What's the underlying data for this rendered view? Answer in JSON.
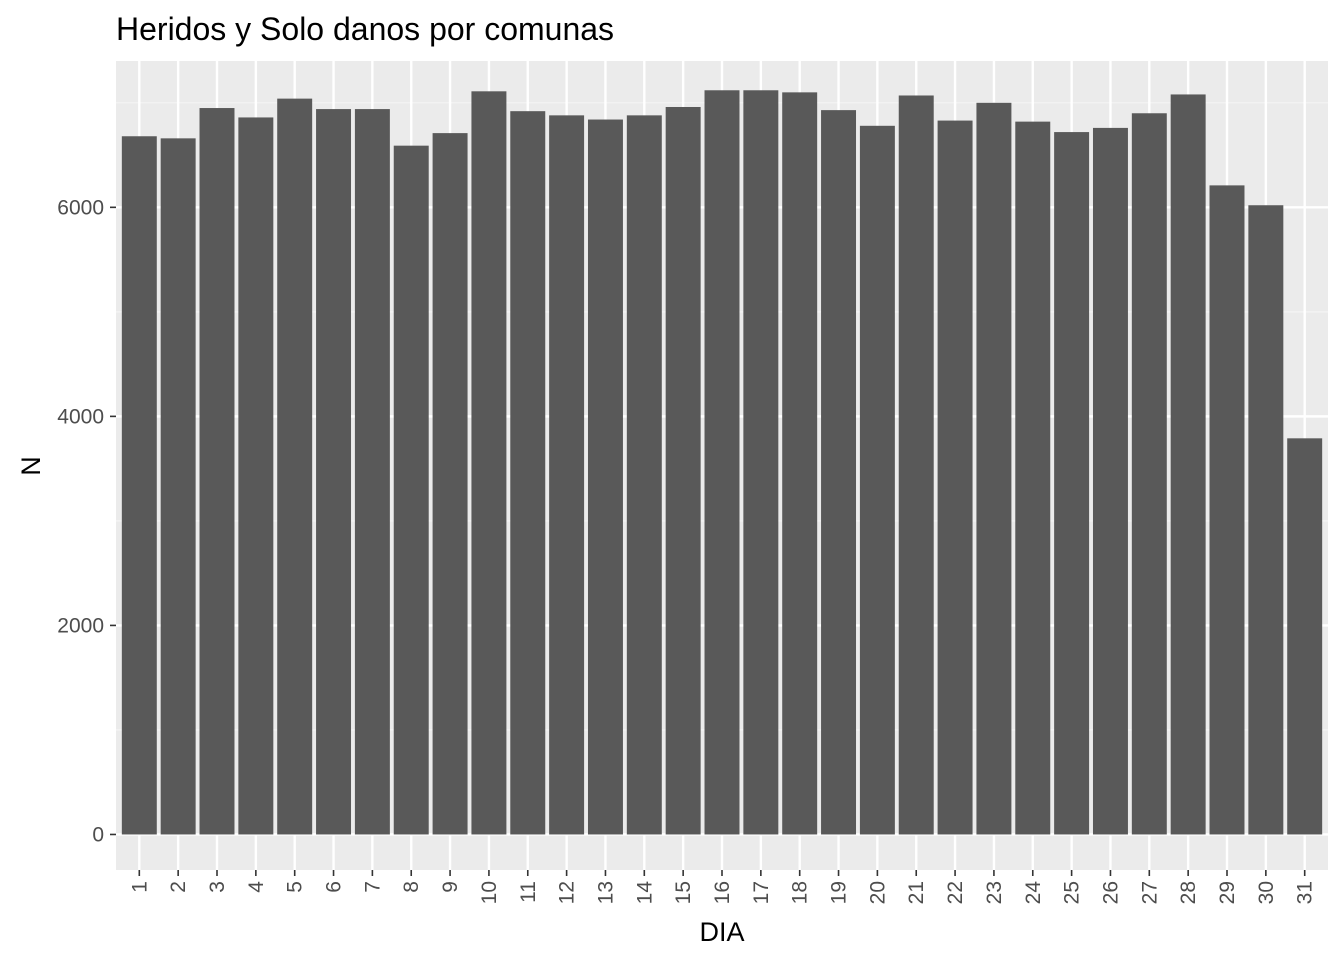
{
  "chart_data": {
    "type": "bar",
    "title": "Heridos y Solo danos por comunas",
    "xlabel": "DIA",
    "ylabel": "N",
    "categories": [
      "1",
      "2",
      "3",
      "4",
      "5",
      "6",
      "7",
      "8",
      "9",
      "10",
      "11",
      "12",
      "13",
      "14",
      "15",
      "16",
      "17",
      "18",
      "19",
      "20",
      "21",
      "22",
      "23",
      "24",
      "25",
      "26",
      "27",
      "28",
      "29",
      "30",
      "31"
    ],
    "values": [
      6680,
      6660,
      6950,
      6860,
      7040,
      6940,
      6940,
      6590,
      6710,
      7110,
      6920,
      6880,
      6840,
      6880,
      6960,
      7120,
      7120,
      7100,
      6930,
      6780,
      7070,
      6830,
      7000,
      6820,
      6720,
      6760,
      6900,
      7080,
      6210,
      6020,
      3790
    ],
    "ylim": [
      -340,
      7400
    ],
    "yticks": [
      0,
      2000,
      4000,
      6000
    ],
    "ytick_labels": [
      "0",
      "2000",
      "4000",
      "6000"
    ],
    "grid": true,
    "colors": {
      "bar": "#595959",
      "panel": "#ebebeb",
      "grid_major": "#ffffff",
      "grid_minor": "#f5f5f5",
      "tick": "#333333"
    }
  }
}
